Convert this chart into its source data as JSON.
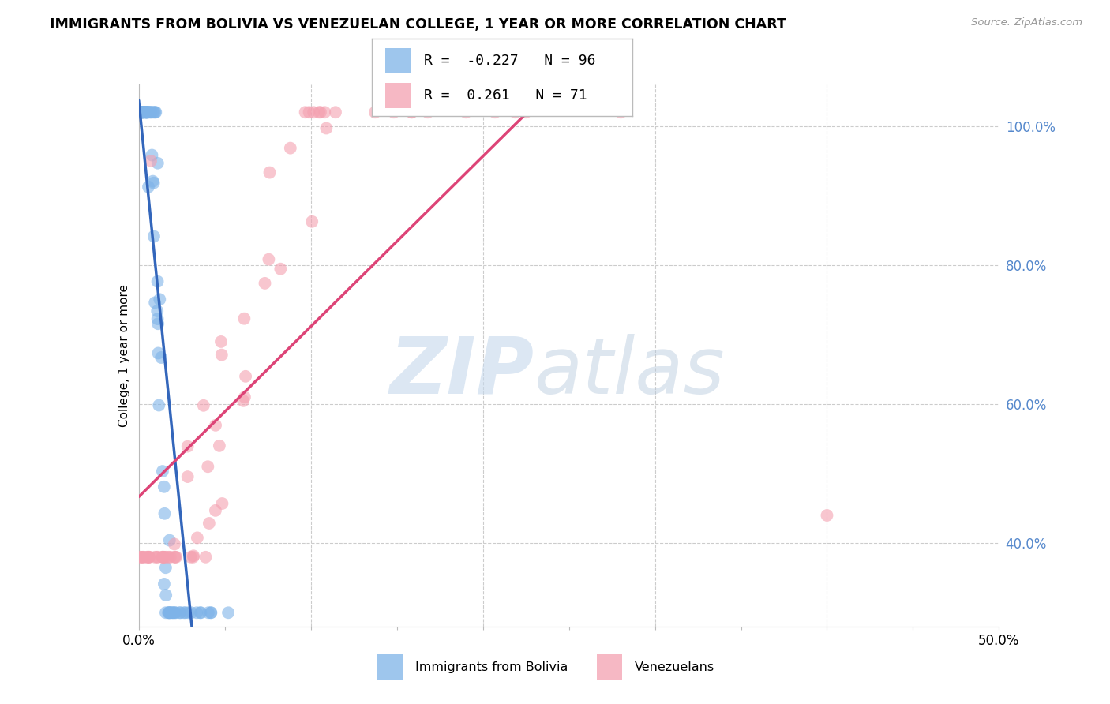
{
  "title": "IMMIGRANTS FROM BOLIVIA VS VENEZUELAN COLLEGE, 1 YEAR OR MORE CORRELATION CHART",
  "source": "Source: ZipAtlas.com",
  "ylabel": "College, 1 year or more",
  "xlim": [
    0.0,
    0.5
  ],
  "ylim": [
    0.28,
    1.06
  ],
  "blue_R": -0.227,
  "blue_N": 96,
  "pink_R": 0.261,
  "pink_N": 71,
  "blue_color": "#7EB3E8",
  "pink_color": "#F4A0B0",
  "blue_trend_color": "#3366BB",
  "pink_trend_color": "#DD4477",
  "dashed_trend_color": "#AACCEE",
  "right_ytick_color": "#5588CC",
  "blue_seed": 42,
  "pink_seed": 99
}
